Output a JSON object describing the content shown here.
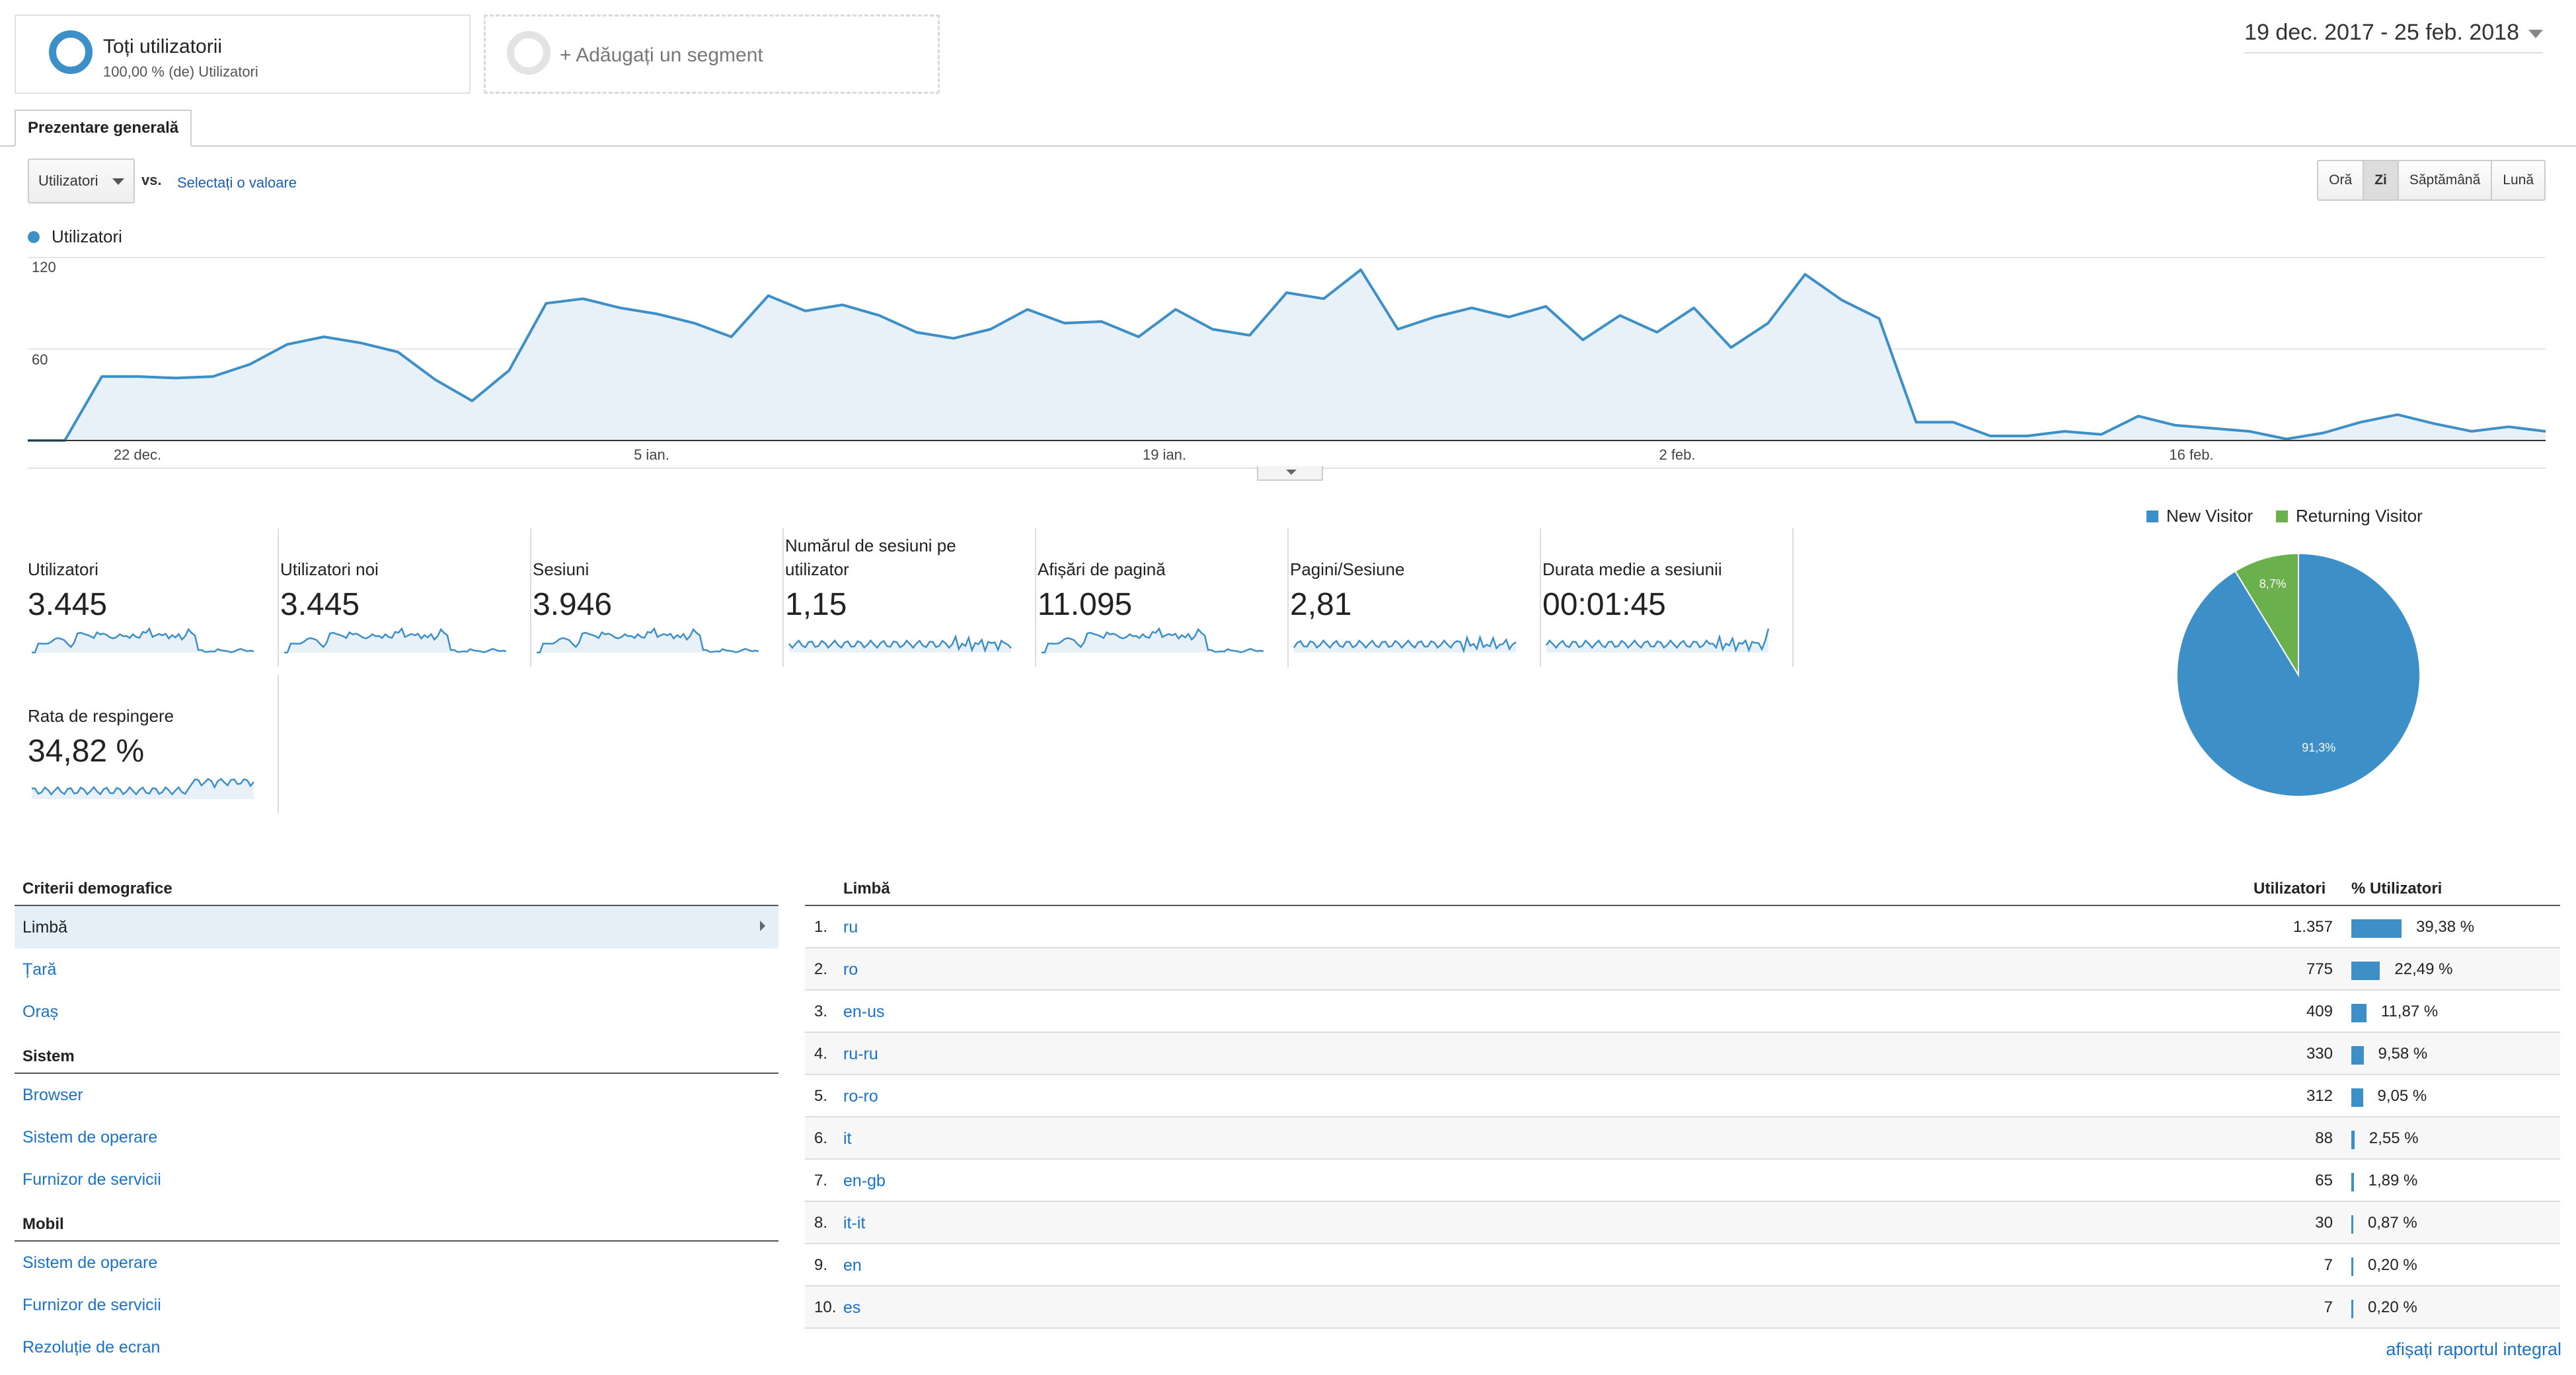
{
  "segments": {
    "primary": {
      "title": "Toți utilizatorii",
      "subtitle": "100,00 % (de) Utilizatori"
    },
    "add_label": "+ Adăugați un segment"
  },
  "date_range": "19 dec. 2017 - 25 feb. 2018",
  "tab": "Prezentare generală",
  "chart_controls": {
    "metric": "Utilizatori",
    "vs": "vs.",
    "select_value": "Selectați o valoare",
    "granularity": [
      {
        "label": "Oră",
        "active": false
      },
      {
        "label": "Zi",
        "active": true
      },
      {
        "label": "Săptămână",
        "active": false
      },
      {
        "label": "Lună",
        "active": false
      }
    ]
  },
  "chart_data": {
    "type": "area",
    "legend": [
      "Utilizatori"
    ],
    "color": "#3d8fc8",
    "x_ticks": [
      "22 dec.",
      "5 ian.",
      "19 ian.",
      "2 feb.",
      "16 feb."
    ],
    "y_ticks": [
      "120",
      "60"
    ],
    "ylim": [
      0,
      120
    ],
    "x": [
      "2017-12-19",
      "2017-12-20",
      "2017-12-21",
      "2017-12-22",
      "2017-12-23",
      "2017-12-24",
      "2017-12-25",
      "2017-12-26",
      "2017-12-27",
      "2017-12-28",
      "2017-12-29",
      "2017-12-30",
      "2017-12-31",
      "2018-01-01",
      "2018-01-02",
      "2018-01-03",
      "2018-01-04",
      "2018-01-05",
      "2018-01-06",
      "2018-01-07",
      "2018-01-08",
      "2018-01-09",
      "2018-01-10",
      "2018-01-11",
      "2018-01-12",
      "2018-01-13",
      "2018-01-14",
      "2018-01-15",
      "2018-01-16",
      "2018-01-17",
      "2018-01-18",
      "2018-01-19",
      "2018-01-20",
      "2018-01-21",
      "2018-01-22",
      "2018-01-23",
      "2018-01-24",
      "2018-01-25",
      "2018-01-26",
      "2018-01-27",
      "2018-01-28",
      "2018-01-29",
      "2018-01-30",
      "2018-01-31",
      "2018-02-01",
      "2018-02-02",
      "2018-02-03",
      "2018-02-04",
      "2018-02-05",
      "2018-02-06",
      "2018-02-07",
      "2018-02-08",
      "2018-02-09",
      "2018-02-10",
      "2018-02-11",
      "2018-02-12",
      "2018-02-13",
      "2018-02-14",
      "2018-02-15",
      "2018-02-16",
      "2018-02-17",
      "2018-02-18",
      "2018-02-19",
      "2018-02-20",
      "2018-02-21",
      "2018-02-22",
      "2018-02-23",
      "2018-02-24",
      "2018-02-25"
    ],
    "values": [
      0,
      0,
      42,
      42,
      41,
      42,
      50,
      63,
      68,
      64,
      58,
      40,
      26,
      46,
      90,
      93,
      87,
      83,
      77,
      68,
      95,
      85,
      89,
      82,
      71,
      67,
      73,
      86,
      77,
      78,
      68,
      86,
      73,
      69,
      97,
      93,
      112,
      73,
      81,
      87,
      81,
      88,
      66,
      82,
      71,
      87,
      61,
      77,
      109,
      92,
      80,
      12,
      12,
      3,
      3,
      6,
      4,
      16,
      10,
      8,
      6,
      1,
      5,
      12,
      17,
      11,
      6,
      9,
      6
    ]
  },
  "scorecards": [
    {
      "label": "Utilizatori",
      "value": "3.445"
    },
    {
      "label": "Utilizatori noi",
      "value": "3.445"
    },
    {
      "label": "Sesiuni",
      "value": "3.946"
    },
    {
      "label": "Numărul de sesiuni pe utilizator",
      "value": "1,15"
    },
    {
      "label": "Afișări de pagină",
      "value": "11.095"
    },
    {
      "label": "Pagini/Sesiune",
      "value": "2,81"
    },
    {
      "label": "Durata medie a sesiunii",
      "value": "00:01:45"
    },
    {
      "label": "Rata de respingere",
      "value": "34,82 %"
    }
  ],
  "pie": {
    "legend": [
      {
        "label": "New Visitor",
        "color": "#3d8fc8"
      },
      {
        "label": "Returning Visitor",
        "color": "#6ab04c"
      }
    ],
    "slices": [
      {
        "label": "91,3%",
        "value": 91.3
      },
      {
        "label": "8,7%",
        "value": 8.7
      }
    ]
  },
  "demographics": {
    "sections": [
      {
        "title": "Criterii demografice",
        "items": [
          "Limbă",
          "Țară",
          "Oraș"
        ]
      },
      {
        "title": "Sistem",
        "items": [
          "Browser",
          "Sistem de operare",
          "Furnizor de servicii"
        ]
      },
      {
        "title": "Mobil",
        "items": [
          "Sistem de operare",
          "Furnizor de servicii",
          "Rezoluție de ecran"
        ]
      }
    ]
  },
  "table": {
    "headers": {
      "dimension": "Limbă",
      "users": "Utilizatori",
      "pct": "% Utilizatori"
    },
    "rows": [
      {
        "num": "1.",
        "lang": "ru",
        "users": "1.357",
        "pct": "39,38 %",
        "share": 39.38
      },
      {
        "num": "2.",
        "lang": "ro",
        "users": "775",
        "pct": "22,49 %",
        "share": 22.49
      },
      {
        "num": "3.",
        "lang": "en-us",
        "users": "409",
        "pct": "11,87 %",
        "share": 11.87
      },
      {
        "num": "4.",
        "lang": "ru-ru",
        "users": "330",
        "pct": "9,58 %",
        "share": 9.58
      },
      {
        "num": "5.",
        "lang": "ro-ro",
        "users": "312",
        "pct": "9,05 %",
        "share": 9.05
      },
      {
        "num": "6.",
        "lang": "it",
        "users": "88",
        "pct": "2,55 %",
        "share": 2.55
      },
      {
        "num": "7.",
        "lang": "en-gb",
        "users": "65",
        "pct": "1,89 %",
        "share": 1.89
      },
      {
        "num": "8.",
        "lang": "it-it",
        "users": "30",
        "pct": "0,87 %",
        "share": 0.87
      },
      {
        "num": "9.",
        "lang": "en",
        "users": "7",
        "pct": "0,20 %",
        "share": 0.2
      },
      {
        "num": "10.",
        "lang": "es",
        "users": "7",
        "pct": "0,20 %",
        "share": 0.2
      }
    ],
    "full_report": "afișați raportul integral"
  }
}
